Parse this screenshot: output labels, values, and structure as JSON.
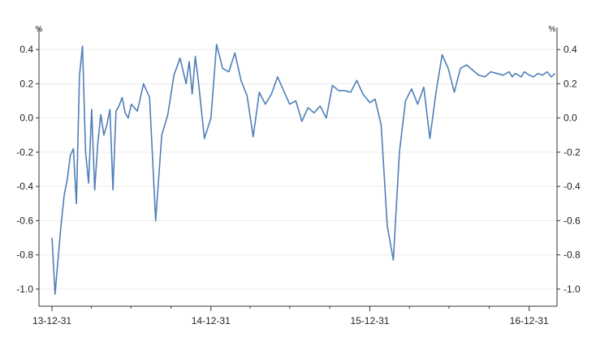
{
  "chart_data": {
    "type": "line",
    "y_unit": "%",
    "ylim": [
      -1.1,
      0.5
    ],
    "y_ticks": [
      0.4,
      0.2,
      0.0,
      -0.2,
      -0.4,
      -0.6,
      -0.8,
      -1.0
    ],
    "y_tick_labels": [
      "0.4",
      "0.2",
      "0.0",
      "-0.2",
      "-0.4",
      "-0.6",
      "-0.8",
      "-1.0"
    ],
    "x_tick_labels": [
      "13-12-31",
      "14-12-31",
      "15-12-31",
      "16-12-31"
    ],
    "x_start_date": "2013-12-31",
    "grid": true,
    "line_color": "#4f7fb8",
    "series": [
      {
        "name": "",
        "x": [
          "2013-12-31",
          "2014-01-07",
          "2014-01-14",
          "2014-01-21",
          "2014-01-28",
          "2014-02-04",
          "2014-02-11",
          "2014-02-18",
          "2014-02-25",
          "2014-03-04",
          "2014-03-11",
          "2014-03-18",
          "2014-03-25",
          "2014-04-01",
          "2014-04-08",
          "2014-04-15",
          "2014-04-22",
          "2014-04-29",
          "2014-05-06",
          "2014-05-13",
          "2014-05-20",
          "2014-05-27",
          "2014-06-03",
          "2014-06-10",
          "2014-06-17",
          "2014-06-24",
          "2014-07-01",
          "2014-07-15",
          "2014-07-29",
          "2014-08-12",
          "2014-08-26",
          "2014-09-09",
          "2014-09-23",
          "2014-10-07",
          "2014-10-21",
          "2014-11-04",
          "2014-11-11",
          "2014-11-18",
          "2014-11-25",
          "2014-12-02",
          "2014-12-16",
          "2014-12-31",
          "2015-01-13",
          "2015-01-27",
          "2015-02-10",
          "2015-02-24",
          "2015-03-10",
          "2015-03-24",
          "2015-04-07",
          "2015-04-21",
          "2015-05-05",
          "2015-05-19",
          "2015-06-02",
          "2015-06-16",
          "2015-06-30",
          "2015-07-14",
          "2015-07-28",
          "2015-08-11",
          "2015-08-25",
          "2015-09-08",
          "2015-09-22",
          "2015-10-06",
          "2015-10-20",
          "2015-11-03",
          "2015-11-17",
          "2015-12-01",
          "2015-12-15",
          "2015-12-31",
          "2016-01-12",
          "2016-01-26",
          "2016-02-09",
          "2016-02-23",
          "2016-03-08",
          "2016-03-22",
          "2016-04-05",
          "2016-04-19",
          "2016-05-03",
          "2016-05-17",
          "2016-05-31",
          "2016-06-14",
          "2016-06-28",
          "2016-07-12",
          "2016-07-26",
          "2016-08-09",
          "2016-08-23",
          "2016-09-06",
          "2016-09-20",
          "2016-10-04",
          "2016-10-18",
          "2016-11-01",
          "2016-11-08",
          "2016-11-15",
          "2016-11-22",
          "2016-11-29",
          "2016-12-06",
          "2016-12-13",
          "2016-12-20",
          "2016-12-31",
          "2017-01-10",
          "2017-01-20",
          "2017-01-31",
          "2017-02-10",
          "2017-02-20",
          "2017-02-28"
        ],
        "values": [
          -0.7,
          -1.03,
          -0.82,
          -0.62,
          -0.45,
          -0.36,
          -0.22,
          -0.18,
          -0.5,
          0.25,
          0.42,
          -0.2,
          -0.38,
          0.05,
          -0.42,
          -0.15,
          0.02,
          -0.1,
          -0.04,
          0.05,
          -0.42,
          0.04,
          0.07,
          0.12,
          0.03,
          0.0,
          0.08,
          0.04,
          0.2,
          0.12,
          -0.6,
          -0.1,
          0.02,
          0.25,
          0.35,
          0.2,
          0.33,
          0.14,
          0.36,
          0.22,
          -0.12,
          0.0,
          0.43,
          0.29,
          0.27,
          0.38,
          0.22,
          0.13,
          -0.11,
          0.15,
          0.08,
          0.14,
          0.24,
          0.16,
          0.08,
          0.1,
          -0.02,
          0.06,
          0.03,
          0.07,
          0.0,
          0.19,
          0.16,
          0.16,
          0.15,
          0.22,
          0.14,
          0.09,
          0.11,
          -0.04,
          -0.63,
          -0.83,
          -0.2,
          0.1,
          0.17,
          0.08,
          0.18,
          -0.12,
          0.15,
          0.37,
          0.29,
          0.15,
          0.29,
          0.31,
          0.28,
          0.25,
          0.24,
          0.27,
          0.26,
          0.25,
          0.26,
          0.27,
          0.24,
          0.26,
          0.25,
          0.24,
          0.27,
          0.25,
          0.24,
          0.26,
          0.25,
          0.27,
          0.24,
          0.26
        ]
      }
    ]
  }
}
